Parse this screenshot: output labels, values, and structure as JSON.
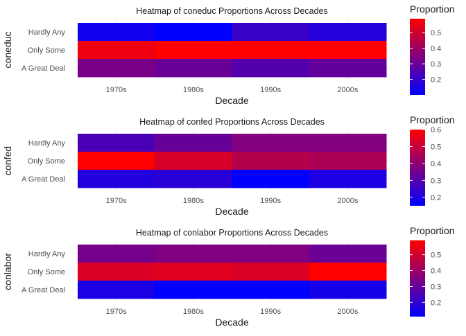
{
  "chart_data": [
    {
      "type": "heatmap",
      "title": "Heatmap of coneduc Proportions Across Decades",
      "xlabel": "Decade",
      "ylabel": "coneduc",
      "x": [
        "1970s",
        "1980s",
        "1990s",
        "2000s"
      ],
      "y": [
        "Hardly Any",
        "Only Some",
        "A Great Deal"
      ],
      "values": [
        [
          0.13,
          0.1,
          0.21,
          0.17
        ],
        [
          0.56,
          0.59,
          0.59,
          0.59
        ],
        [
          0.33,
          0.3,
          0.26,
          0.29
        ]
      ],
      "legend": {
        "title": "Proportion",
        "range": [
          0.1,
          0.59
        ],
        "ticks": [
          0.2,
          0.3,
          0.4,
          0.5
        ],
        "position": "right"
      },
      "colors": {
        "low": "#0000ff",
        "high": "#ff0000"
      }
    },
    {
      "type": "heatmap",
      "title": "Heatmap of confed Proportions Across Decades",
      "xlabel": "Decade",
      "ylabel": "confed",
      "x": [
        "1970s",
        "1980s",
        "1990s",
        "2000s"
      ],
      "y": [
        "Hardly Any",
        "Only Some",
        "A Great Deal"
      ],
      "values": [
        [
          0.28,
          0.33,
          0.38,
          0.38
        ],
        [
          0.6,
          0.53,
          0.47,
          0.45
        ],
        [
          0.21,
          0.22,
          0.15,
          0.2
        ]
      ],
      "legend": {
        "title": "Proportion",
        "range": [
          0.15,
          0.6
        ],
        "ticks": [
          0.2,
          0.3,
          0.4,
          0.5,
          0.6
        ],
        "position": "right"
      },
      "colors": {
        "low": "#0000ff",
        "high": "#ff0000"
      }
    },
    {
      "type": "heatmap",
      "title": "Heatmap of conlabor Proportions Across Decades",
      "xlabel": "Decade",
      "ylabel": "conlabor",
      "x": [
        "1970s",
        "1980s",
        "1990s",
        "2000s"
      ],
      "y": [
        "Hardly Any",
        "Only Some",
        "A Great Deal"
      ],
      "values": [
        [
          0.33,
          0.35,
          0.35,
          0.31
        ],
        [
          0.52,
          0.53,
          0.52,
          0.59
        ],
        [
          0.16,
          0.11,
          0.11,
          0.15
        ]
      ],
      "legend": {
        "title": "Proportion",
        "range": [
          0.11,
          0.59
        ],
        "ticks": [
          0.2,
          0.3,
          0.4,
          0.5
        ],
        "position": "right"
      },
      "colors": {
        "low": "#0000ff",
        "high": "#ff0000"
      }
    }
  ]
}
